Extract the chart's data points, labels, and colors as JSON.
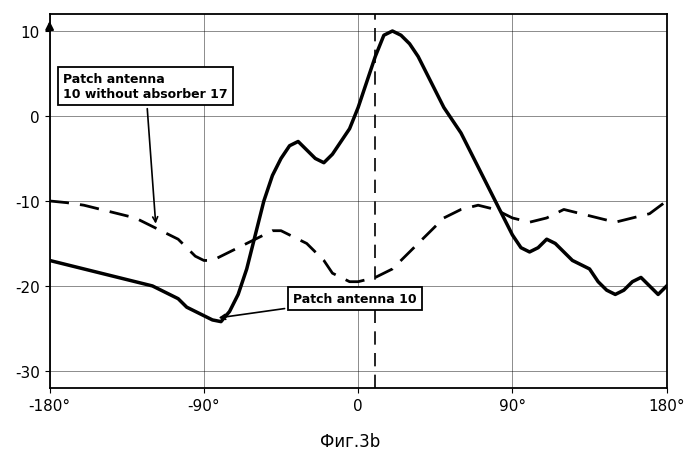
{
  "title": "Фиг.3b",
  "xlim": [
    -180,
    180
  ],
  "ylim": [
    -32,
    12
  ],
  "xticks": [
    -180,
    -90,
    0,
    90,
    180
  ],
  "xtick_labels": [
    "-180°",
    "-90°",
    "0",
    "90°",
    "180°"
  ],
  "yticks": [
    -30,
    -20,
    -10,
    0,
    10
  ],
  "dashed_vline_x": 10,
  "solid_color": "#000000",
  "dashed_color": "#000000",
  "background_color": "#ffffff",
  "annotation1_text": "Patch antenna\n10 without absorber 17",
  "annotation2_text": "Patch antenna 10",
  "solid_x": [
    -180,
    -170,
    -160,
    -150,
    -140,
    -130,
    -120,
    -110,
    -105,
    -100,
    -95,
    -90,
    -85,
    -80,
    -75,
    -70,
    -65,
    -60,
    -55,
    -50,
    -45,
    -40,
    -35,
    -30,
    -25,
    -20,
    -15,
    -10,
    -5,
    0,
    5,
    10,
    15,
    20,
    25,
    30,
    35,
    40,
    45,
    50,
    55,
    60,
    65,
    70,
    75,
    80,
    85,
    90,
    95,
    100,
    105,
    110,
    115,
    120,
    125,
    130,
    135,
    140,
    145,
    150,
    155,
    160,
    165,
    170,
    175,
    180
  ],
  "solid_y": [
    -17.0,
    -17.5,
    -18.0,
    -18.5,
    -19.0,
    -19.5,
    -20.0,
    -21.0,
    -21.5,
    -22.5,
    -23.0,
    -23.5,
    -24.0,
    -24.2,
    -23.0,
    -21.0,
    -18.0,
    -14.0,
    -10.0,
    -7.0,
    -5.0,
    -3.5,
    -3.0,
    -4.0,
    -5.0,
    -5.5,
    -4.5,
    -3.0,
    -1.5,
    1.0,
    4.0,
    7.0,
    9.5,
    10.0,
    9.5,
    8.5,
    7.0,
    5.0,
    3.0,
    1.0,
    -0.5,
    -2.0,
    -4.0,
    -6.0,
    -8.0,
    -10.0,
    -12.0,
    -14.0,
    -15.5,
    -16.0,
    -15.5,
    -14.5,
    -15.0,
    -16.0,
    -17.0,
    -17.5,
    -18.0,
    -19.5,
    -20.5,
    -21.0,
    -20.5,
    -19.5,
    -19.0,
    -20.0,
    -21.0,
    -20.0
  ],
  "dashed_x": [
    -180,
    -170,
    -160,
    -150,
    -140,
    -130,
    -120,
    -110,
    -105,
    -100,
    -95,
    -90,
    -85,
    -80,
    -75,
    -70,
    -65,
    -60,
    -55,
    -50,
    -45,
    -40,
    -35,
    -30,
    -25,
    -20,
    -15,
    -10,
    -5,
    0,
    10,
    20,
    30,
    40,
    50,
    60,
    70,
    80,
    90,
    100,
    110,
    120,
    130,
    140,
    150,
    160,
    170,
    180
  ],
  "dashed_y": [
    -10.0,
    -10.2,
    -10.5,
    -11.0,
    -11.5,
    -12.0,
    -13.0,
    -14.0,
    -14.5,
    -15.5,
    -16.5,
    -17.0,
    -17.0,
    -16.5,
    -16.0,
    -15.5,
    -15.0,
    -14.5,
    -14.0,
    -13.5,
    -13.5,
    -14.0,
    -14.5,
    -15.0,
    -16.0,
    -17.0,
    -18.5,
    -19.0,
    -19.5,
    -19.5,
    -19.0,
    -18.0,
    -16.0,
    -14.0,
    -12.0,
    -11.0,
    -10.5,
    -11.0,
    -12.0,
    -12.5,
    -12.0,
    -11.0,
    -11.5,
    -12.0,
    -12.5,
    -12.0,
    -11.5,
    -10.0
  ]
}
